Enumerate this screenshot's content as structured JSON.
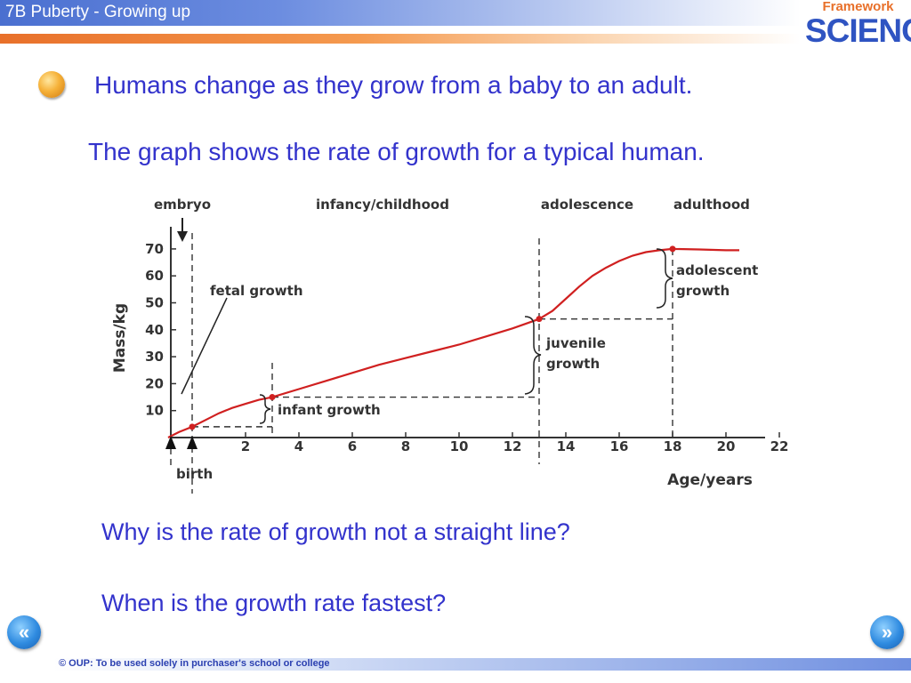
{
  "header": {
    "title": "7B  Puberty - Growing up",
    "logo_top": "Framework",
    "logo_main": "SCIENCE"
  },
  "intro": "Humans change as they grow from a baby to an adult.",
  "graph_caption": "The graph shows the rate of growth for a typical human.",
  "questions": [
    "Why is the rate of growth not a straight line?",
    "When is the growth rate fastest?"
  ],
  "footer": "© OUP: To be used solely in purchaser's school or college",
  "nav": {
    "back": "«",
    "forward": "»"
  },
  "colors": {
    "text_blue": "#3333cc",
    "curve": "#d02020",
    "header_blue": "#4a6fd0",
    "stripe_orange": "#e8702a"
  },
  "icons": {
    "bullet": "orange-bullet-icon",
    "back": "back-arrow-icon",
    "forward": "forward-arrow-icon"
  },
  "chart_data": {
    "type": "line",
    "xlabel": "Age/years",
    "ylabel": "Mass/kg",
    "xlim": [
      -0.9,
      22
    ],
    "ylim": [
      0,
      70
    ],
    "xticks": [
      2,
      4,
      6,
      8,
      10,
      12,
      14,
      16,
      18,
      20,
      22
    ],
    "yticks": [
      10,
      20,
      30,
      40,
      50,
      60,
      70
    ],
    "grid": false,
    "series": [
      {
        "x": [
          -0.9,
          -0.5,
          0,
          0.5,
          1,
          1.5,
          2,
          2.5,
          3,
          4,
          5,
          6,
          7,
          8,
          9,
          10,
          11,
          12,
          13,
          13.5,
          14,
          14.5,
          15,
          15.5,
          16,
          16.5,
          17,
          17.5,
          18,
          19,
          20,
          20.5
        ],
        "y": [
          0,
          2,
          4,
          6.5,
          9,
          11,
          12.5,
          14,
          15,
          18,
          21,
          24,
          27,
          29.5,
          32,
          34.5,
          37.5,
          40.5,
          44,
          47,
          51.5,
          56,
          60,
          63,
          65.5,
          67.5,
          68.8,
          69.5,
          70,
          69.8,
          69.5,
          69.5
        ]
      }
    ],
    "markers": [
      {
        "x": 0,
        "y": 4
      },
      {
        "x": 3,
        "y": 15
      },
      {
        "x": 13,
        "y": 44
      },
      {
        "x": 18,
        "y": 70
      }
    ],
    "stage_labels": [
      "embryo",
      "infancy/childhood",
      "adolescence",
      "adulthood"
    ],
    "annotations": {
      "fetal": "fetal growth",
      "infant": "infant growth",
      "juvenile_1": "juvenile",
      "juvenile_2": "growth",
      "adolescent_1": "adolescent",
      "adolescent_2": "growth",
      "birth": "birth"
    },
    "boundaries": {
      "birth_x": 0,
      "adolescence_x": 13,
      "adulthood_x": 18,
      "infant_x": 3
    }
  }
}
